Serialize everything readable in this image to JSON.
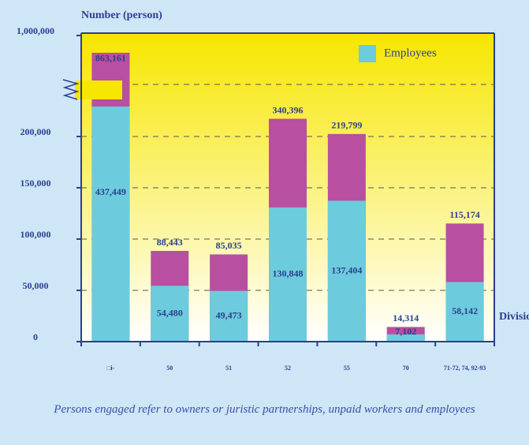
{
  "chart_data": {
    "type": "bar",
    "y_label": "Number (person)",
    "x_label": "Division",
    "caption": "Persons engaged refer to owners or juristic partnerships, unpaid workers and employees",
    "categories": [
      "□i-",
      "50",
      "51",
      "52",
      "55",
      "70",
      "71-72, 74, 92-93"
    ],
    "series": [
      {
        "color": "#b84fa0",
        "values": [
          863161,
          88443,
          85035,
          340396,
          219799,
          14314,
          115174
        ],
        "value_labels": [
          "863,161",
          "88,443",
          "85,035",
          "340,396",
          "219,799",
          "14,314",
          "115,174"
        ]
      },
      {
        "name": "Employees",
        "color": "#6ccbdc",
        "values": [
          437449,
          54480,
          49473,
          130848,
          137404,
          7102,
          58142
        ],
        "value_labels": [
          "437,449",
          "54,480",
          "49,473",
          "130,848",
          "137,404",
          "7,102",
          "58,142"
        ]
      }
    ],
    "ylim": [
      0,
      1000000
    ],
    "yticks": [
      0,
      {
        "value": 50000,
        "label": "50,000"
      },
      {
        "value": 100000,
        "label": "100,000"
      },
      {
        "value": 150000,
        "label": "150,000"
      },
      {
        "value": 200000,
        "label": "200,000"
      },
      {
        "value": 1000000,
        "label": "1,000,000"
      }
    ],
    "grid": true,
    "legend": "top-right"
  }
}
